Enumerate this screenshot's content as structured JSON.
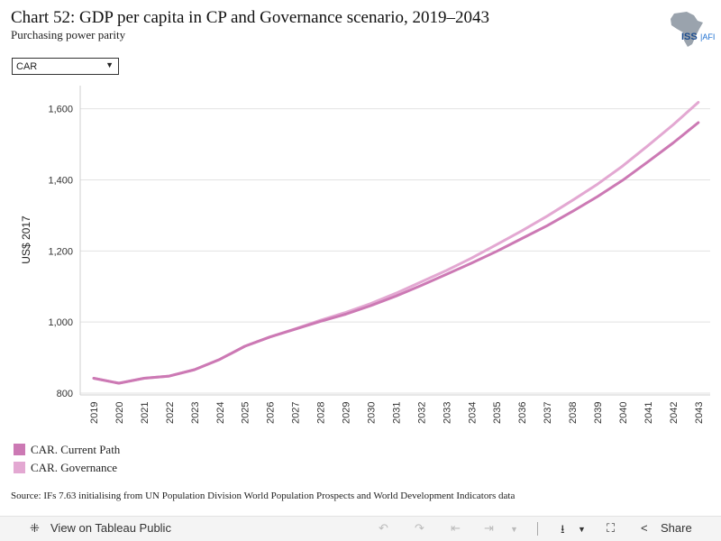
{
  "header": {
    "title": "Chart 52: GDP per capita in CP and Governance scenario, 2019–2043",
    "subtitle": "Purchasing power parity",
    "logo_text": "ISS|AFRICA"
  },
  "filter": {
    "selected": "CAR"
  },
  "chart_data": {
    "type": "line",
    "title": "Chart 52: GDP per capita in CP and Governance scenario, 2019–2043",
    "subtitle": "Purchasing power parity",
    "xlabel": "",
    "ylabel": "US$ 2017",
    "x": [
      "2019",
      "2020",
      "2021",
      "2022",
      "2023",
      "2024",
      "2025",
      "2026",
      "2027",
      "2028",
      "2029",
      "2030",
      "2031",
      "2032",
      "2033",
      "2034",
      "2035",
      "2036",
      "2037",
      "2038",
      "2039",
      "2040",
      "2041",
      "2042",
      "2043"
    ],
    "ylim": [
      795,
      1665
    ],
    "yticks": [
      800,
      1000,
      1200,
      1400,
      1600
    ],
    "ytick_labels": [
      "800",
      "1,000",
      "1,200",
      "1,400",
      "1,600"
    ],
    "grid": true,
    "legend_position": "bottom-left",
    "series": [
      {
        "name": "CAR. Current Path",
        "color": "#cc79b4",
        "values": [
          842,
          828,
          842,
          848,
          866,
          895,
          932,
          958,
          980,
          1002,
          1022,
          1046,
          1073,
          1103,
          1134,
          1166,
          1199,
          1235,
          1271,
          1311,
          1353,
          1399,
          1451,
          1504,
          1561
        ]
      },
      {
        "name": "CAR. Governance",
        "color": "#e3a8d2",
        "values": [
          842,
          828,
          842,
          848,
          866,
          895,
          932,
          958,
          981,
          1005,
          1027,
          1052,
          1081,
          1113,
          1145,
          1180,
          1218,
          1257,
          1298,
          1342,
          1388,
          1439,
          1496,
          1555,
          1618
        ]
      }
    ]
  },
  "source": "Source: IFs 7.63 initialising from UN Population Division World Population Prospects and World Development Indicators data",
  "toolbar": {
    "view_label": "View on Tableau Public",
    "share_label": "Share"
  }
}
